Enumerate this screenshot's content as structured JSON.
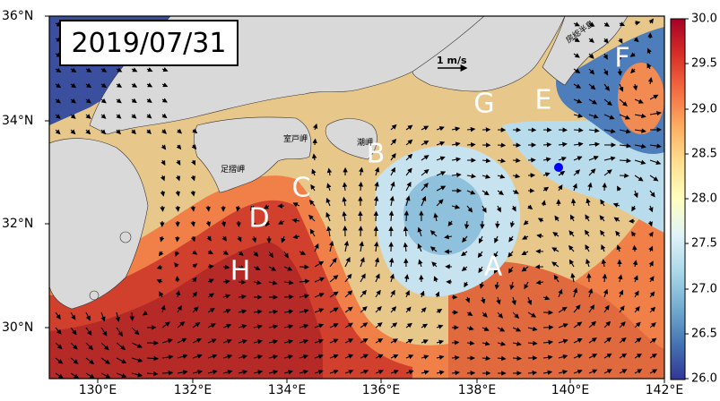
{
  "date_label": "2019/07/31",
  "scale": {
    "label": "1 m/s"
  },
  "x_ticks": [
    "130°E",
    "132°E",
    "134°E",
    "136°E",
    "138°E",
    "140°E",
    "142°E"
  ],
  "y_ticks": [
    "36°N",
    "34°N",
    "32°N",
    "30°N"
  ],
  "colorbar": {
    "ticks": [
      "30.0",
      "29.5",
      "29.0",
      "28.5",
      "28.0",
      "27.5",
      "27.0",
      "26.5",
      "26.0"
    ],
    "min": 26.0,
    "max": 30.0,
    "colors": [
      "#313695",
      "#4575b4",
      "#74add1",
      "#abd9e9",
      "#e0f3f8",
      "#ffffbf",
      "#fee090",
      "#fdae61",
      "#f46d43",
      "#d73027",
      "#a50026"
    ]
  },
  "regions": [
    "A",
    "B",
    "C",
    "D",
    "E",
    "F",
    "G",
    "H"
  ],
  "places": [
    "室戸岬",
    "足摺岬",
    "潮岬",
    "房総半島"
  ],
  "land_color": "#d9d9d9",
  "marker_color": "#0000ff"
}
